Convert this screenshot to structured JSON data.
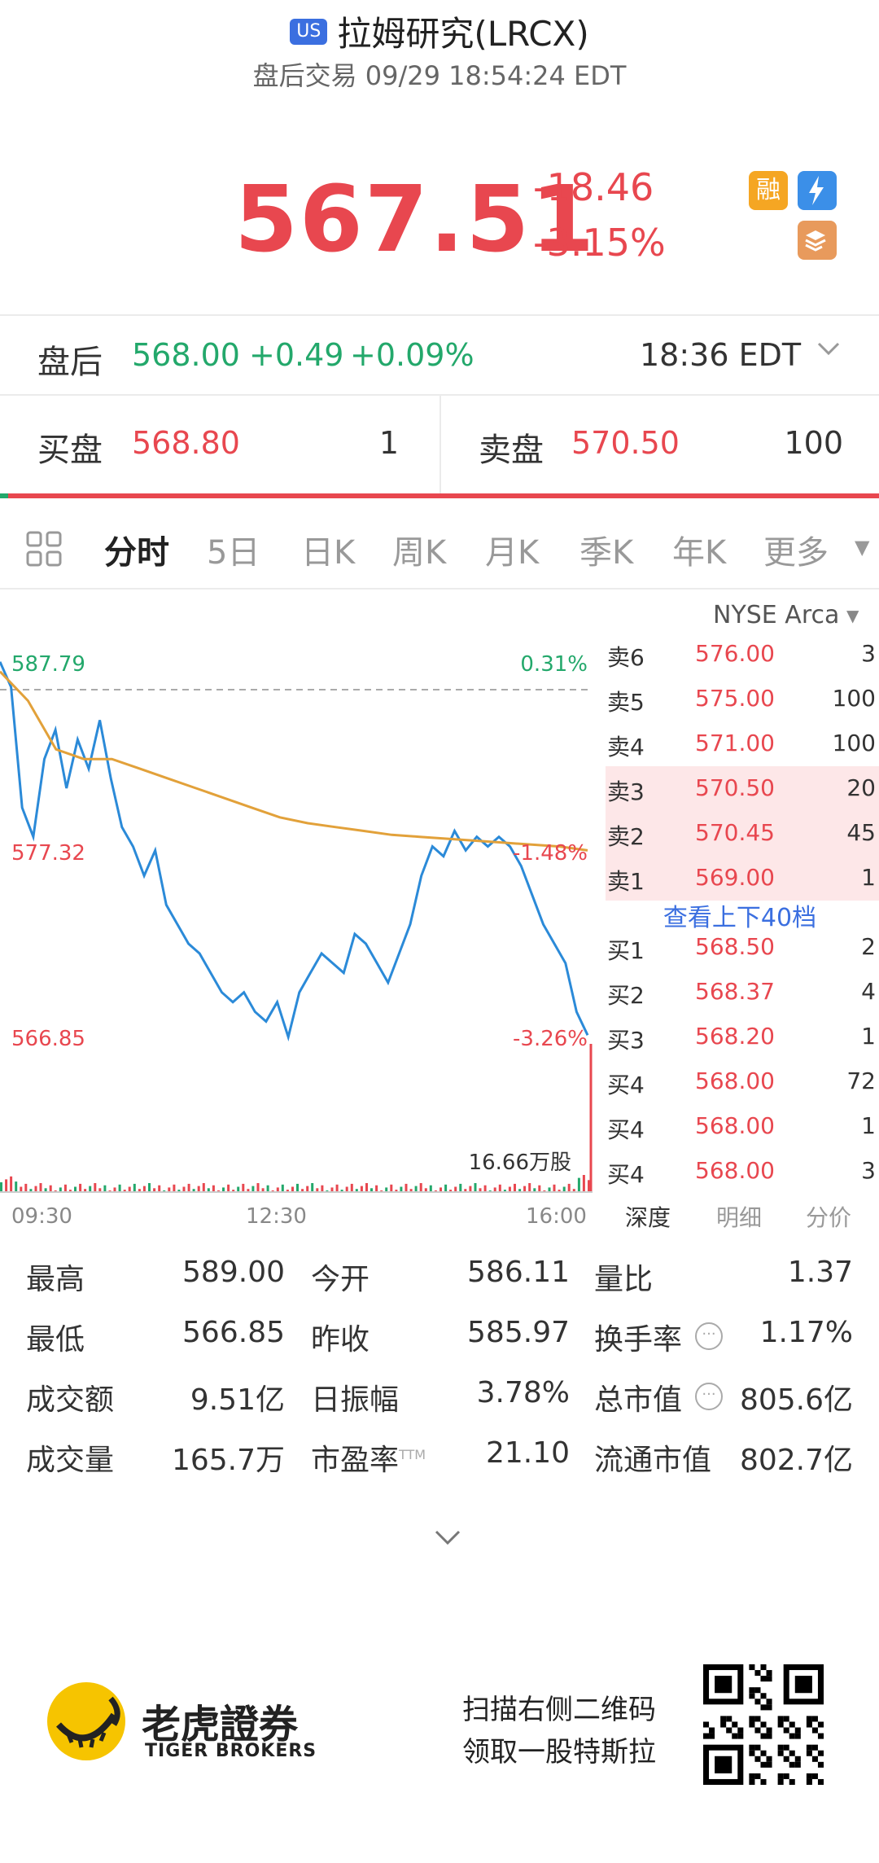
{
  "header": {
    "market_badge": "US",
    "title": "拉姆研究(LRCX)",
    "subtitle": "盘后交易 09/29 18:54:24 EDT"
  },
  "quote": {
    "price": "567.51",
    "change": "-18.46",
    "change_pct": "-3.15%",
    "badge_margin": "融",
    "badge_bolt_sub": "1",
    "badge_layers_sub": "A",
    "color_down": "#e8474f",
    "color_up": "#23a86b"
  },
  "afterhours": {
    "label": "盘后",
    "price": "568.00",
    "change": "+0.49",
    "change_pct": "+0.09%",
    "time": "18:36 EDT"
  },
  "bidask": {
    "bid_label": "买盘",
    "bid_price": "568.80",
    "bid_qty": "1",
    "ask_label": "卖盘",
    "ask_price": "570.50",
    "ask_qty": "100"
  },
  "tabs": [
    "分时",
    "5日",
    "日K",
    "周K",
    "月K",
    "季K",
    "年K",
    "更多"
  ],
  "chart_labels": {
    "exchange": "NYSE Arca",
    "top_price": "587.79",
    "top_pct": "0.31%",
    "mid_price": "577.32",
    "mid_pct": "-1.48%",
    "low_price": "566.85",
    "low_pct": "-3.26%",
    "volume_label": "16.66万股",
    "x_ticks": [
      "09:30",
      "12:30",
      "16:00"
    ]
  },
  "chart_data": {
    "type": "line",
    "series": [
      {
        "values": [
          586.5,
          585.2,
          579.0,
          577.5,
          581.5,
          583.0,
          580.0,
          582.5,
          581.0,
          583.5,
          580.5,
          578.0,
          577.0,
          575.5,
          576.8,
          574.0,
          573.0,
          572.0,
          571.5,
          570.5,
          569.5,
          569.0,
          569.5,
          568.5,
          568.0,
          569.0,
          567.2,
          569.5,
          570.5,
          571.5,
          571.0,
          570.5,
          572.5,
          572.0,
          571.0,
          570.0,
          571.5,
          573.0,
          575.5,
          577.0,
          576.5,
          577.8,
          576.8,
          577.5,
          577.0,
          577.5,
          577.0,
          576.0,
          574.5,
          573.0,
          572.0,
          571.0,
          568.5,
          567.3
        ]
      },
      {
        "values": [
          586.0,
          584.5,
          582.0,
          581.5,
          581.5,
          581.0,
          580.5,
          580.0,
          579.5,
          579.0,
          578.5,
          578.2,
          578.0,
          577.8,
          577.6,
          577.5,
          577.4,
          577.3,
          577.2,
          577.1,
          577.0,
          576.8
        ]
      }
    ],
    "ylim": [
      566.85,
      587.79
    ],
    "prev_close": 585.97
  },
  "orderbook": {
    "rows": [
      {
        "label": "卖6",
        "price": "576.00",
        "qty": "3"
      },
      {
        "label": "卖5",
        "price": "575.00",
        "qty": "100"
      },
      {
        "label": "卖4",
        "price": "571.00",
        "qty": "100"
      },
      {
        "label": "卖3",
        "price": "570.50",
        "qty": "20"
      },
      {
        "label": "卖2",
        "price": "570.45",
        "qty": "45"
      },
      {
        "label": "卖1",
        "price": "569.00",
        "qty": "1"
      }
    ],
    "more": "查看上下40档",
    "buy_rows": [
      {
        "label": "买1",
        "price": "568.50",
        "qty": "2"
      },
      {
        "label": "买2",
        "price": "568.37",
        "qty": "4"
      },
      {
        "label": "买3",
        "price": "568.20",
        "qty": "1"
      },
      {
        "label": "买4",
        "price": "568.00",
        "qty": "72"
      },
      {
        "label": "买4",
        "price": "568.00",
        "qty": "1"
      },
      {
        "label": "买4",
        "price": "568.00",
        "qty": "3"
      }
    ],
    "tabs": [
      "深度",
      "明细",
      "分价"
    ]
  },
  "stats": {
    "high_label": "最高",
    "high": "589.00",
    "open_label": "今开",
    "open": "586.11",
    "vol_ratio_label": "量比",
    "vol_ratio": "1.37",
    "low_label": "最低",
    "low": "566.85",
    "prev_close_label": "昨收",
    "prev_close": "585.97",
    "turnover_rate_label": "换手率",
    "turnover_rate": "1.17%",
    "turnover_label": "成交额",
    "turnover": "9.51亿",
    "amplitude_label": "日振幅",
    "amplitude": "3.78%",
    "mktcap_label": "总市值",
    "mktcap": "805.6亿",
    "volume_label": "成交量",
    "volume": "165.7万",
    "pe_label": "市盈率",
    "pe_sup": "TTM",
    "pe": "21.10",
    "float_cap_label": "流通市值",
    "float_cap": "802.7亿"
  },
  "footer": {
    "brand_cn": "老虎證券",
    "brand_en": "TIGER BROKERS",
    "promo_line1": "扫描右侧二维码",
    "promo_line2": "领取一股特斯拉"
  }
}
